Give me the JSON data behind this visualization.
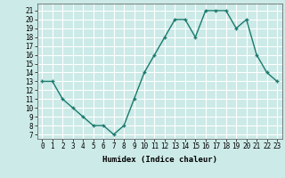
{
  "x": [
    0,
    1,
    2,
    3,
    4,
    5,
    6,
    7,
    8,
    9,
    10,
    11,
    12,
    13,
    14,
    15,
    16,
    17,
    18,
    19,
    20,
    21,
    22,
    23
  ],
  "y": [
    13,
    13,
    11,
    10,
    9,
    8,
    8,
    7,
    8,
    11,
    14,
    16,
    18,
    20,
    20,
    18,
    21,
    21,
    21,
    19,
    20,
    16,
    14,
    13
  ],
  "line_color": "#1a7a6e",
  "marker": "+",
  "marker_size": 3,
  "marker_lw": 1.0,
  "bg_color": "#cceae7",
  "grid_color": "#ffffff",
  "xlabel": "Humidex (Indice chaleur)",
  "xlim": [
    -0.5,
    23.5
  ],
  "ylim": [
    6.5,
    21.8
  ],
  "xticks": [
    0,
    1,
    2,
    3,
    4,
    5,
    6,
    7,
    8,
    9,
    10,
    11,
    12,
    13,
    14,
    15,
    16,
    17,
    18,
    19,
    20,
    21,
    22,
    23
  ],
  "yticks": [
    7,
    8,
    9,
    10,
    11,
    12,
    13,
    14,
    15,
    16,
    17,
    18,
    19,
    20,
    21
  ],
  "label_fontsize": 6.5,
  "tick_fontsize": 5.5,
  "line_width": 1.0
}
